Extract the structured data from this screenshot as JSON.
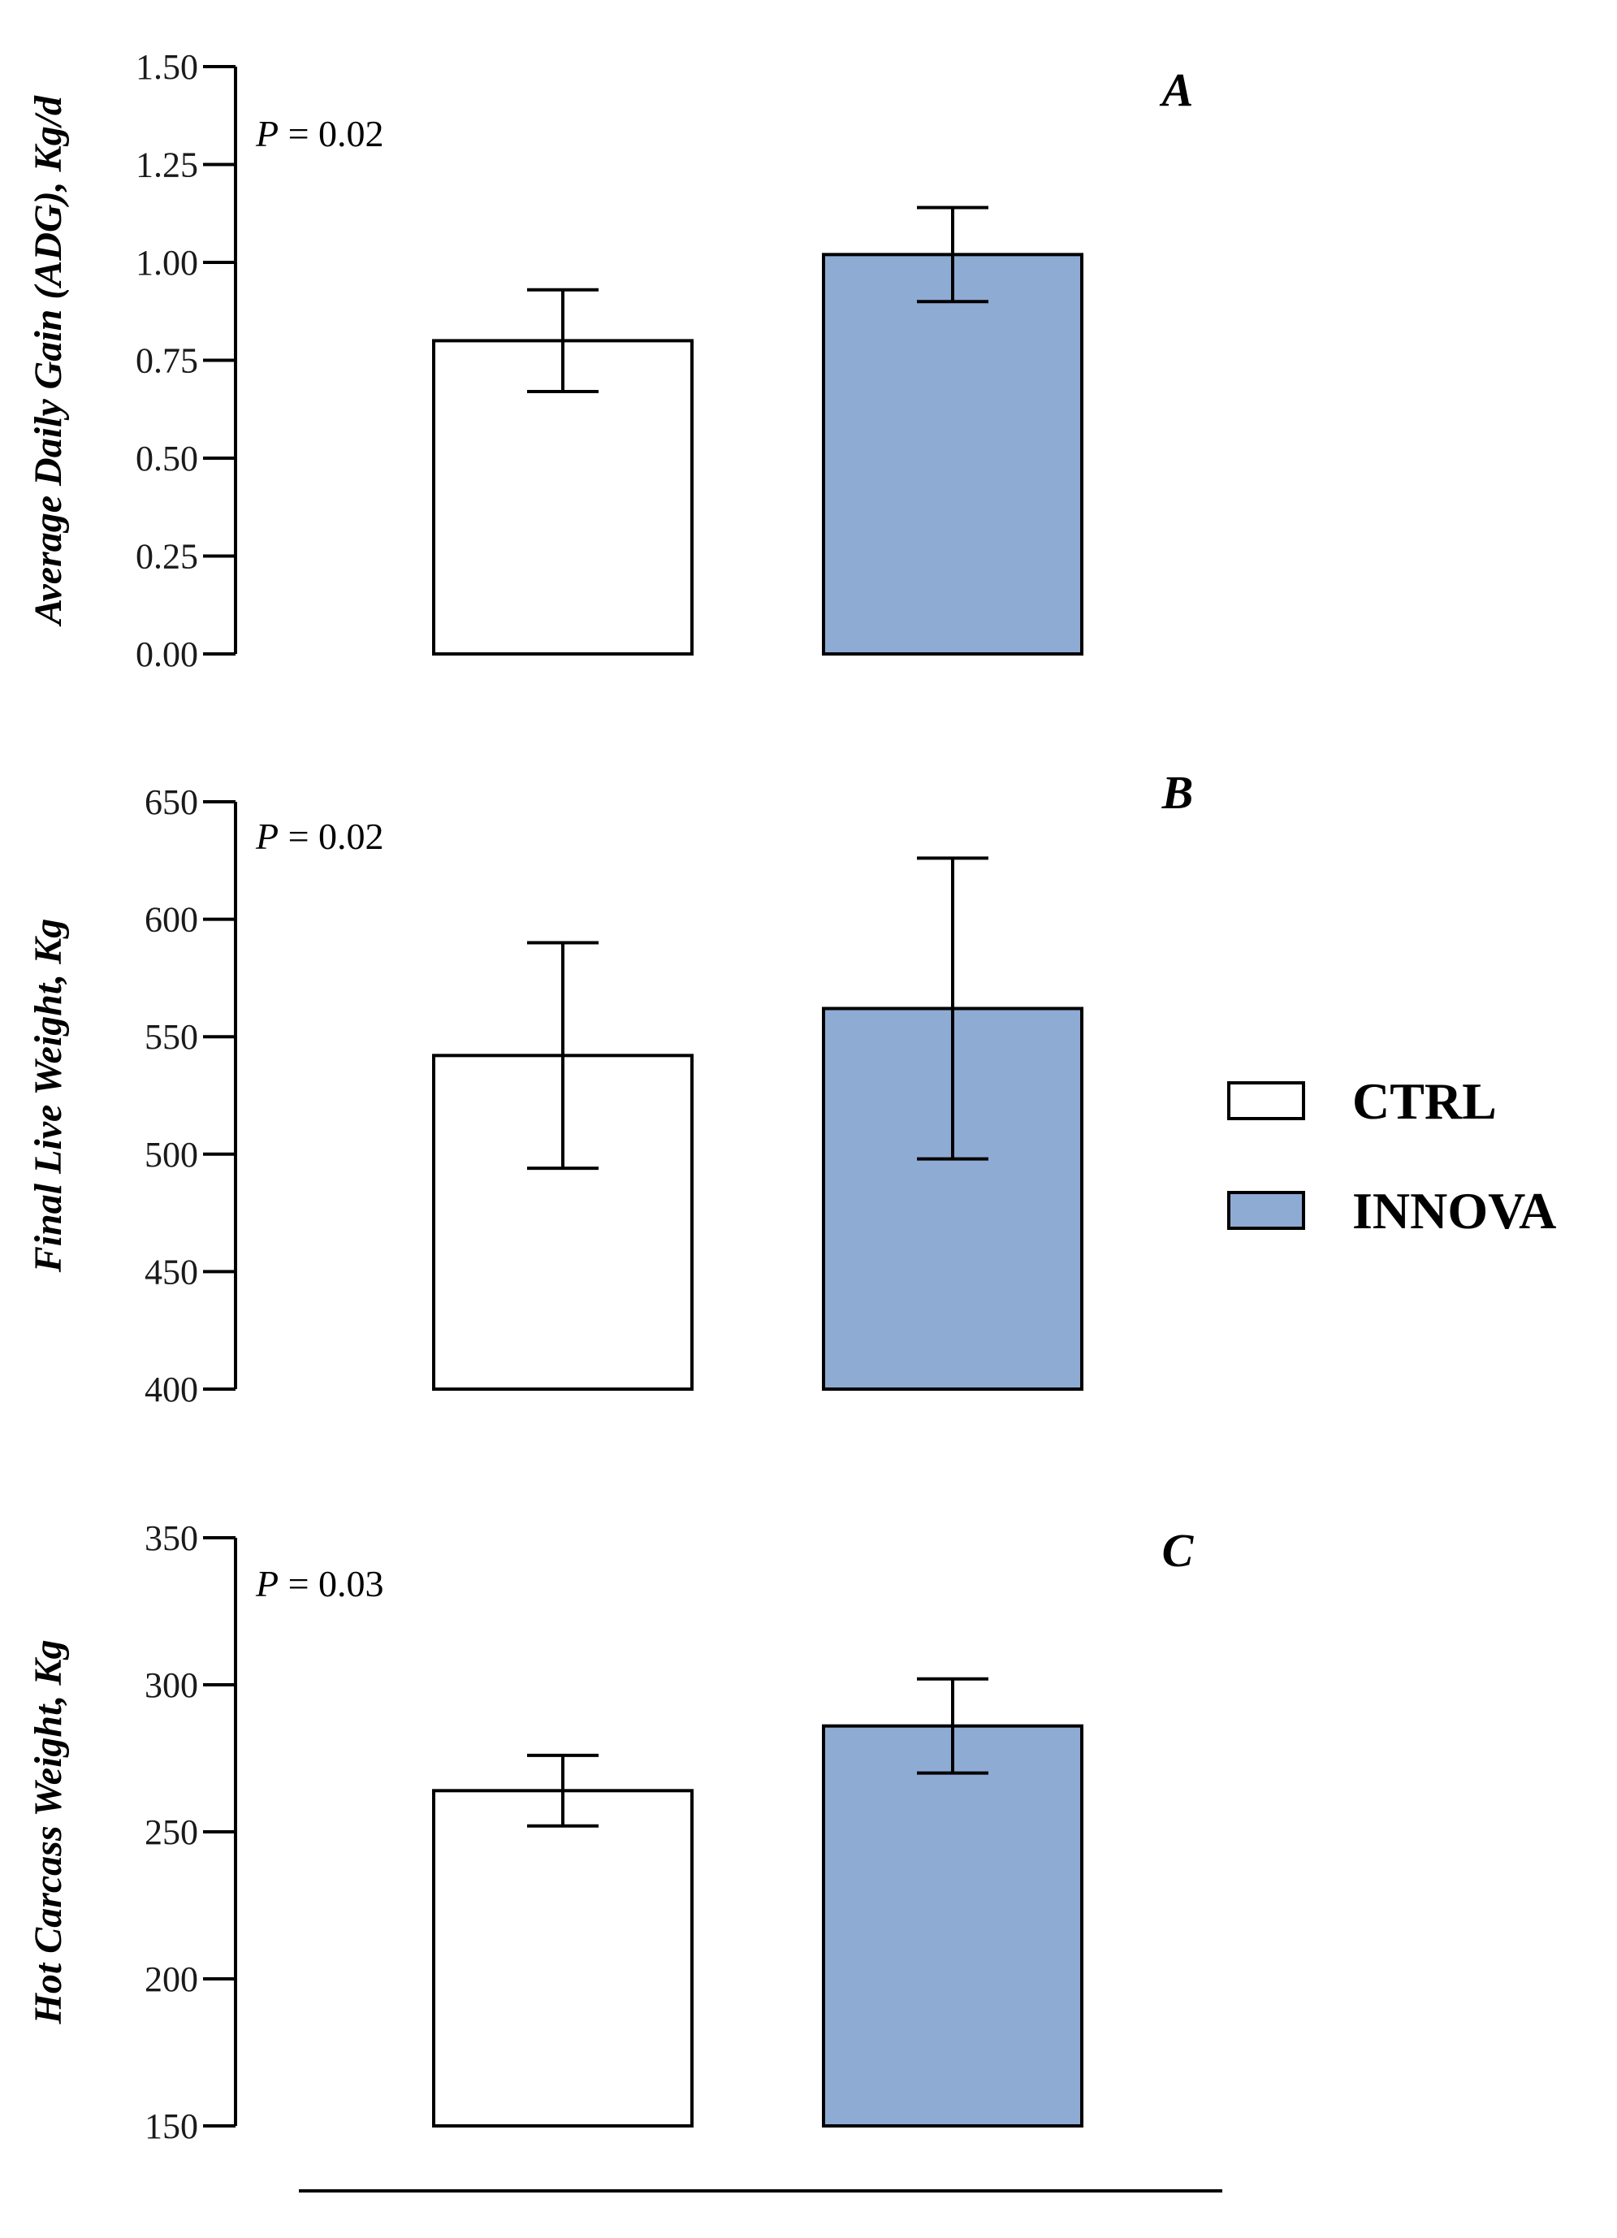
{
  "colors": {
    "ctrl_fill": "#ffffff",
    "innova_fill": "#8eabd3",
    "stroke": "#000000"
  },
  "legend": {
    "placement": "middle-right",
    "items": [
      {
        "label": "CTRL",
        "color": "#ffffff"
      },
      {
        "label": "INNOVA",
        "color": "#8eabd3"
      }
    ]
  },
  "chart_data": [
    {
      "type": "bar",
      "panel": "A",
      "pvalue_prefix": "P",
      "pvalue_text": " = 0.02",
      "ylabel": "Average Daily Gain (ADG), Kg/d",
      "xlabel": "",
      "ylim": [
        0,
        1.5
      ],
      "yticks": [
        0,
        0.25,
        0.5,
        0.75,
        1.0,
        1.25,
        1.5
      ],
      "ytick_labels": [
        "0.00",
        "0.25",
        "0.50",
        "0.75",
        "1.00",
        "1.25",
        "1.50"
      ],
      "categories": [
        "CTRL",
        "INNOVA"
      ],
      "values": [
        0.8,
        1.02
      ],
      "errors": [
        0.13,
        0.12
      ]
    },
    {
      "type": "bar",
      "panel": "B",
      "pvalue_prefix": "P",
      "pvalue_text": " = 0.02",
      "ylabel": "Final Live Weight, Kg",
      "xlabel": "",
      "ylim": [
        400,
        650
      ],
      "yticks": [
        400,
        450,
        500,
        550,
        600,
        650
      ],
      "ytick_labels": [
        "400",
        "450",
        "500",
        "550",
        "600",
        "650"
      ],
      "categories": [
        "CTRL",
        "INNOVA"
      ],
      "values": [
        542,
        562
      ],
      "errors": [
        48,
        64
      ]
    },
    {
      "type": "bar",
      "panel": "C",
      "pvalue_prefix": "P",
      "pvalue_text": " = 0.03",
      "ylabel": "Hot Carcass Weight, Kg",
      "xlabel": "",
      "ylim": [
        150,
        350
      ],
      "yticks": [
        150,
        200,
        250,
        300,
        350
      ],
      "ytick_labels": [
        "150",
        "200",
        "250",
        "300",
        "350"
      ],
      "categories": [
        "CTRL",
        "INNOVA"
      ],
      "values": [
        264,
        286
      ],
      "errors": [
        12,
        16
      ]
    }
  ]
}
